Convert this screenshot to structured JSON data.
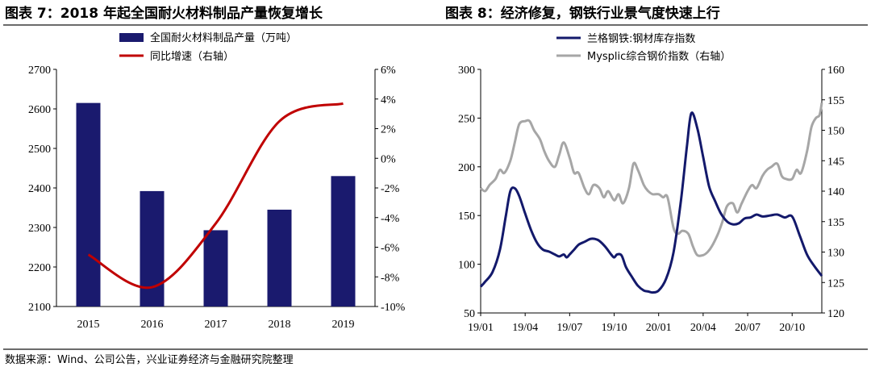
{
  "titles": {
    "left": "图表 7：2018 年起全国耐火材料制品产量恢复增长",
    "right": "图表 8：经济修复，钢铁行业景气度快速上行"
  },
  "source": "数据来源：Wind、公司公告，兴业证券经济与金融研究院整理",
  "chart_data": [
    {
      "type": "bar",
      "categories": [
        "2015",
        "2016",
        "2017",
        "2018",
        "2019"
      ],
      "series": [
        {
          "name": "全国耐火材料制品产量（万吨）",
          "type": "bar",
          "axis": "left",
          "color": "#1a1a6e",
          "values": [
            2615,
            2392,
            2293,
            2345,
            2430
          ]
        },
        {
          "name": "同比增速（右轴）",
          "type": "line",
          "axis": "right",
          "color": "#c00000",
          "values": [
            -6.5,
            -8.7,
            -4.4,
            2.5,
            3.7
          ]
        }
      ],
      "left_axis": {
        "min": 2100,
        "max": 2700,
        "ticks": [
          "2100",
          "2200",
          "2300",
          "2400",
          "2500",
          "2600",
          "2700"
        ]
      },
      "right_axis": {
        "min": -10,
        "max": 6,
        "ticks": [
          "-10%",
          "-8%",
          "-6%",
          "-4%",
          "-2%",
          "0%",
          "2%",
          "4%",
          "6%"
        ]
      },
      "grid": false,
      "legend": "top"
    },
    {
      "type": "line",
      "x_unit": "month",
      "x_start": "19/01",
      "x_ticks": [
        "19/01",
        "19/04",
        "19/07",
        "19/10",
        "20/01",
        "20/04",
        "20/07",
        "20/10"
      ],
      "left_axis": {
        "min": 50,
        "max": 300,
        "ticks": [
          "50",
          "100",
          "150",
          "200",
          "250",
          "300"
        ]
      },
      "right_axis": {
        "min": 120,
        "max": 160,
        "ticks": [
          "120",
          "125",
          "130",
          "135",
          "140",
          "145",
          "150",
          "155",
          "160"
        ]
      },
      "grid": false,
      "legend": "top",
      "series": [
        {
          "name": "兰格钢铁:钢材库存指数",
          "axis": "left",
          "color": "#13196b",
          "x": [
            0,
            0.3,
            0.8,
            1.3,
            1.7,
            2.0,
            2.3,
            2.6,
            3.0,
            3.4,
            3.8,
            4.2,
            4.6,
            5.0,
            5.3,
            5.6,
            5.8,
            6.0,
            6.3,
            6.6,
            7.0,
            7.4,
            7.7,
            8.0,
            8.4,
            8.8,
            9.0,
            9.2,
            9.5,
            9.8,
            10.2,
            10.6,
            11.0,
            11.3,
            11.6,
            12.0,
            12.5,
            13.0,
            13.5,
            13.9,
            14.2,
            14.6,
            15.0,
            15.4,
            15.8,
            16.2,
            16.6,
            17.0,
            17.4,
            17.8,
            18.2,
            18.6,
            19.0,
            19.5,
            20.0,
            20.5,
            21.0,
            21.5,
            22.0,
            22.5,
            23.0
          ],
          "y": [
            77,
            82,
            92,
            115,
            150,
            175,
            178,
            170,
            152,
            135,
            122,
            115,
            113,
            110,
            108,
            110,
            107,
            110,
            115,
            120,
            123,
            126,
            126,
            124,
            118,
            110,
            107,
            110,
            109,
            97,
            87,
            78,
            73,
            72,
            71,
            73,
            85,
            112,
            165,
            220,
            255,
            240,
            210,
            180,
            165,
            152,
            144,
            141,
            142,
            147,
            148,
            151,
            149,
            150,
            151,
            148,
            149,
            130,
            110,
            98,
            88
          ]
        },
        {
          "name": "Mysplic综合钢价指数（右轴）",
          "axis": "right",
          "color": "#a6a6a6",
          "x": [
            0,
            0.3,
            0.6,
            1.0,
            1.3,
            1.6,
            2.0,
            2.3,
            2.6,
            3.0,
            3.3,
            3.6,
            4.0,
            4.3,
            4.6,
            5.0,
            5.3,
            5.6,
            6.0,
            6.3,
            6.6,
            7.0,
            7.3,
            7.6,
            8.0,
            8.3,
            8.6,
            9.0,
            9.3,
            9.6,
            10.0,
            10.3,
            10.6,
            11.0,
            11.3,
            11.6,
            12.0,
            12.3,
            12.6,
            13.0,
            13.3,
            13.6,
            14.0,
            14.3,
            14.6,
            15.0,
            15.3,
            15.6,
            16.0,
            16.3,
            16.6,
            17.0,
            17.3,
            17.6,
            18.0,
            18.3,
            18.6,
            19.0,
            19.3,
            19.6,
            20.0,
            20.3,
            20.6,
            21.0,
            21.3,
            21.6,
            22.0,
            22.3,
            22.6,
            22.85,
            23.0
          ],
          "y": [
            140.5,
            140,
            141,
            142,
            143.5,
            143,
            145,
            148,
            151,
            151.5,
            151.5,
            150,
            148.5,
            146.5,
            145,
            144,
            146,
            148,
            145.5,
            143,
            143,
            140.5,
            139.5,
            141,
            140.5,
            139,
            140,
            138.5,
            139.5,
            138,
            140.5,
            144.5,
            143.5,
            141,
            140,
            139.5,
            139.5,
            139,
            139,
            134,
            133,
            133.5,
            133,
            131,
            129.5,
            129.5,
            130,
            131,
            133,
            135,
            137.5,
            138,
            136.5,
            138,
            140,
            141,
            140.5,
            142.5,
            143.5,
            144,
            144.5,
            142.5,
            142,
            142,
            143.5,
            143,
            146.5,
            150.5,
            152,
            152.5,
            154.5
          ]
        }
      ]
    }
  ]
}
